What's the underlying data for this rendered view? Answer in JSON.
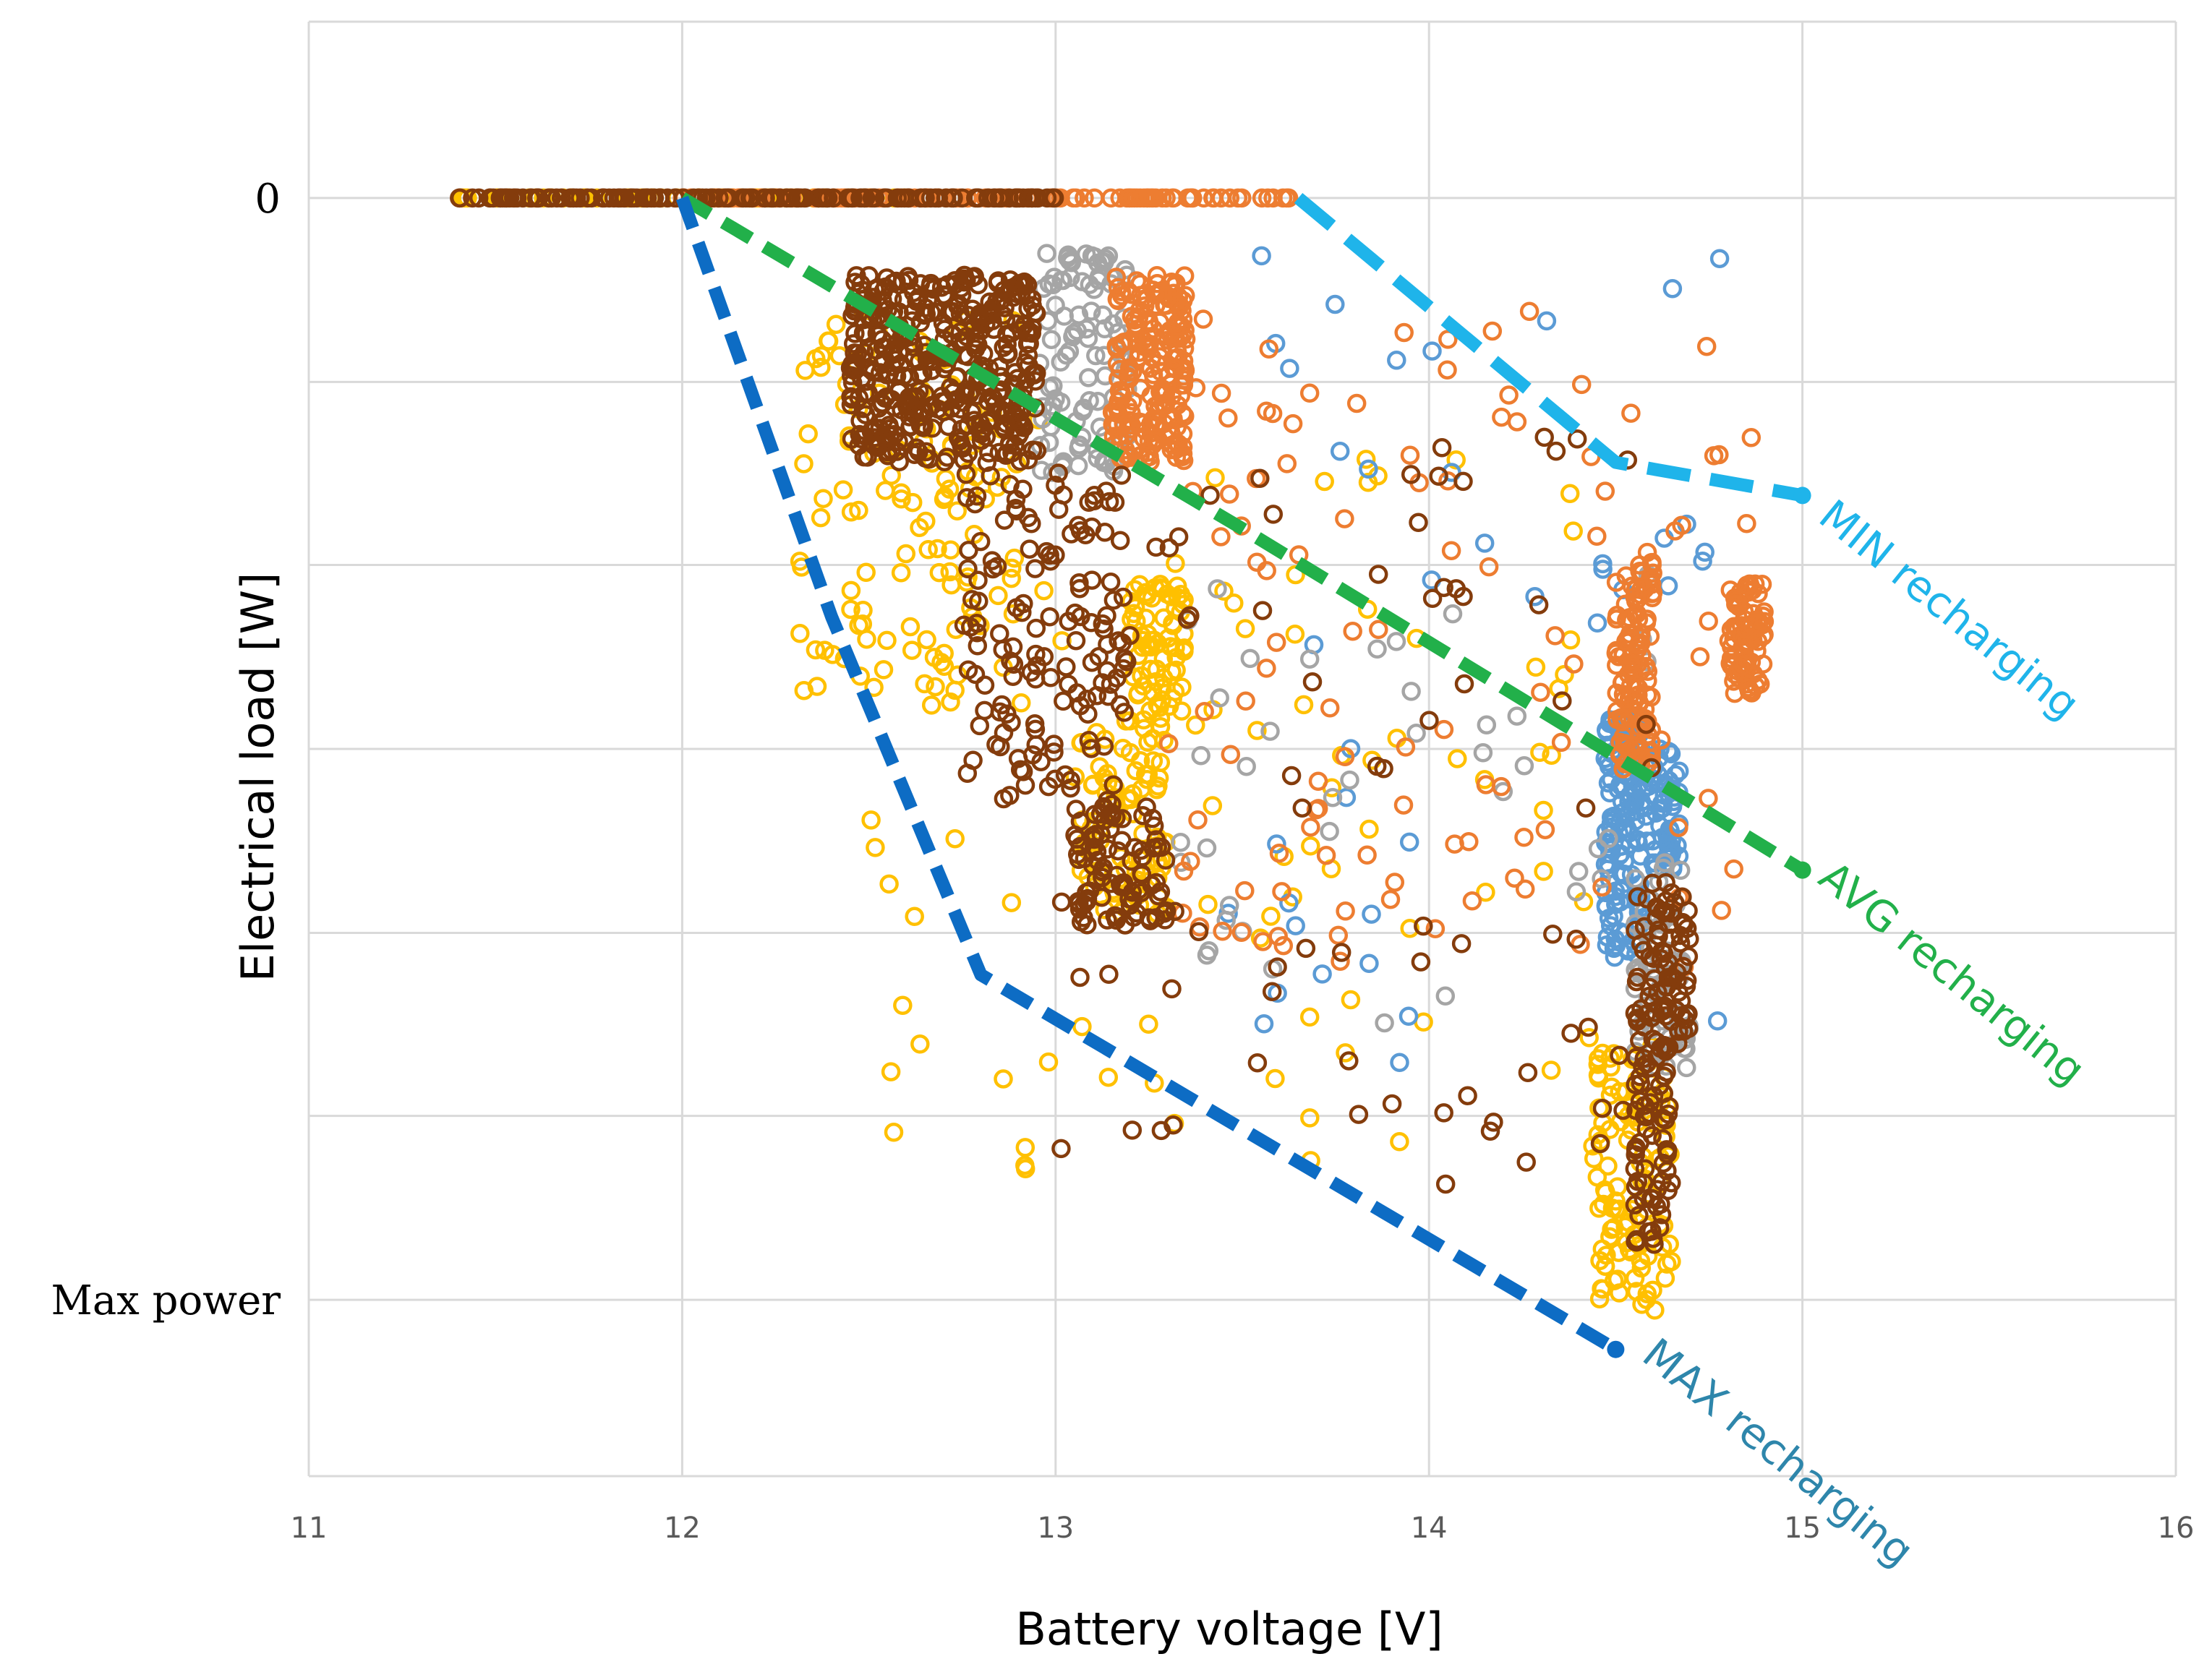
{
  "chart_data": {
    "type": "scatter",
    "xlabel": "Battery voltage [V]",
    "ylabel": "Electrical load [W]",
    "xlim": [
      11,
      16
    ],
    "x_ticks": [
      11,
      12,
      13,
      14,
      15,
      16
    ],
    "ylim": [
      -1.16,
      0.16
    ],
    "y_tick_labels": [
      {
        "value": 0,
        "label": "0"
      },
      {
        "value": -1,
        "label": "Max power"
      }
    ],
    "y_grid": [
      0.16,
      0,
      -0.167,
      -0.333,
      -0.5,
      -0.667,
      -0.833,
      -1,
      -1.16
    ],
    "grid": true,
    "colors": {
      "blue_points": "#5b9bd5",
      "orange_points": "#ed7d31",
      "gray_points": "#a5a5a5",
      "gold_points": "#ffc000",
      "brown_points": "#843c0c",
      "min_curve": "#1fb4ea",
      "avg_curve": "#22b04a",
      "max_curve": "#0d6cc4",
      "max_label": "#2e86ab",
      "grid": "#d9d9d9"
    },
    "curves": [
      {
        "name": "MIN recharging",
        "color": "#1fb4ea",
        "points": [
          [
            13.65,
            0
          ],
          [
            14.5,
            -0.24
          ],
          [
            15.0,
            -0.27
          ]
        ]
      },
      {
        "name": "AVG recharging",
        "color": "#22b04a",
        "points": [
          [
            12.0,
            0
          ],
          [
            13.5,
            -0.3
          ],
          [
            15.0,
            -0.61
          ]
        ]
      },
      {
        "name": "MAX recharging",
        "color": "#0d6cc4",
        "points": [
          [
            12.0,
            0
          ],
          [
            12.4,
            -0.38
          ],
          [
            12.8,
            -0.705
          ],
          [
            14.5,
            -1.045
          ]
        ]
      }
    ],
    "series": [
      {
        "name": "",
        "color": "#5b9bd5",
        "clusters": [
          {
            "x": [
              14.47,
              14.57
            ],
            "y": [
              -0.47,
              -0.69
            ],
            "n": 140
          },
          {
            "x": [
              14.57,
              14.67
            ],
            "y": [
              -0.5,
              -0.62
            ],
            "n": 60
          },
          {
            "x": [
              13.4,
              14.8
            ],
            "y": [
              -0.05,
              -0.85
            ],
            "n": 40
          }
        ]
      },
      {
        "name": "",
        "color": "#ed7d31",
        "clusters": [
          {
            "x": [
              12.0,
              13.65
            ],
            "y": [
              0,
              0
            ],
            "n": 120
          },
          {
            "x": [
              13.15,
              13.35
            ],
            "y": [
              -0.07,
              -0.24
            ],
            "n": 200
          },
          {
            "x": [
              14.5,
              14.6
            ],
            "y": [
              -0.33,
              -0.52
            ],
            "n": 120
          },
          {
            "x": [
              14.8,
              14.9
            ],
            "y": [
              -0.35,
              -0.45
            ],
            "n": 80
          },
          {
            "x": [
              13.3,
              14.9
            ],
            "y": [
              -0.1,
              -0.7
            ],
            "n": 110
          }
        ]
      },
      {
        "name": "",
        "color": "#a5a5a5",
        "clusters": [
          {
            "x": [
              12.95,
              13.2
            ],
            "y": [
              -0.05,
              -0.25
            ],
            "n": 100
          },
          {
            "x": [
              14.55,
              14.7
            ],
            "y": [
              -0.6,
              -0.8
            ],
            "n": 60
          },
          {
            "x": [
              13.3,
              14.6
            ],
            "y": [
              -0.3,
              -0.75
            ],
            "n": 40
          }
        ]
      },
      {
        "name": "",
        "color": "#ffc000",
        "clusters": [
          {
            "x": [
              11.4,
              12.6
            ],
            "y": [
              0,
              0
            ],
            "n": 60
          },
          {
            "x": [
              12.3,
              12.9
            ],
            "y": [
              -0.1,
              -0.45
            ],
            "n": 120
          },
          {
            "x": [
              13.2,
              13.35
            ],
            "y": [
              -0.35,
              -0.47
            ],
            "n": 70
          },
          {
            "x": [
              13.05,
              13.3
            ],
            "y": [
              -0.47,
              -0.65
            ],
            "n": 90
          },
          {
            "x": [
              14.45,
              14.65
            ],
            "y": [
              -0.77,
              -1.02
            ],
            "n": 110
          },
          {
            "x": [
              12.5,
              14.5
            ],
            "y": [
              -0.2,
              -0.9
            ],
            "n": 90
          }
        ]
      },
      {
        "name": "",
        "color": "#843c0c",
        "clusters": [
          {
            "x": [
              11.4,
              13.0
            ],
            "y": [
              0,
              0
            ],
            "n": 160
          },
          {
            "x": [
              12.45,
              12.95
            ],
            "y": [
              -0.07,
              -0.24
            ],
            "n": 420
          },
          {
            "x": [
              12.75,
              13.2
            ],
            "y": [
              -0.25,
              -0.55
            ],
            "n": 140
          },
          {
            "x": [
              13.05,
              13.3
            ],
            "y": [
              -0.55,
              -0.66
            ],
            "n": 90
          },
          {
            "x": [
              14.55,
              14.7
            ],
            "y": [
              -0.63,
              -0.78
            ],
            "n": 90
          },
          {
            "x": [
              14.55,
              14.65
            ],
            "y": [
              -0.78,
              -0.95
            ],
            "n": 60
          },
          {
            "x": [
              13.0,
              14.7
            ],
            "y": [
              -0.2,
              -0.9
            ],
            "n": 80
          }
        ]
      }
    ],
    "annotations": [
      "MIN recharging",
      "AVG recharging",
      "MAX recharging"
    ]
  }
}
